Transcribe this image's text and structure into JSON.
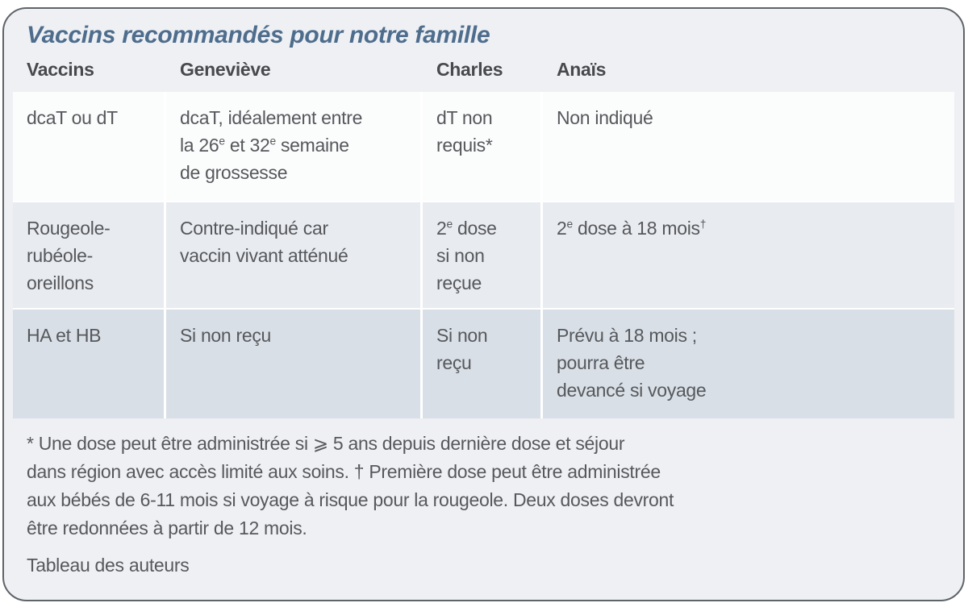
{
  "colors": {
    "card_bg": "#eef0f4",
    "card_border": "#5f6468",
    "row1_bg": "#fbfcfc",
    "row2_bg": "#e8ebef",
    "row3_bg": "#d8dfe6",
    "separator": "#ffffff",
    "title": "#4e6d8d",
    "header_text": "#47494c",
    "body_text": "#56585c"
  },
  "card": {
    "title": "Vaccins recommandés pour notre famille",
    "table": {
      "columns": [
        "Vaccins",
        "Geneviève",
        "Charles",
        "Anaïs"
      ],
      "rows": [
        {
          "cells": [
            [
              [
                "dcaT ou dT"
              ]
            ],
            [
              [
                "dcaT, idéalement entre"
              ],
              [
                "la 26",
                {
                  "sup": "e"
                },
                " et 32",
                {
                  "sup": "e"
                },
                " semaine"
              ],
              [
                "de grossesse"
              ]
            ],
            [
              [
                "dT non"
              ],
              [
                "requis*"
              ]
            ],
            [
              [
                "Non indiqué"
              ]
            ]
          ]
        },
        {
          "cells": [
            [
              [
                "Rougeole-"
              ],
              [
                "rubéole-"
              ],
              [
                "oreillons"
              ]
            ],
            [
              [
                "Contre-indiqué car"
              ],
              [
                "vaccin vivant atténué"
              ]
            ],
            [
              [
                "2",
                {
                  "sup": "e"
                },
                " dose"
              ],
              [
                "si non"
              ],
              [
                "reçue"
              ]
            ],
            [
              [
                "2",
                {
                  "sup": "e"
                },
                " dose à 18 mois",
                {
                  "sup": "†"
                }
              ]
            ]
          ]
        },
        {
          "cells": [
            [
              [
                "HA et HB"
              ]
            ],
            [
              [
                "Si non reçu"
              ]
            ],
            [
              [
                "Si non"
              ],
              [
                "reçu"
              ]
            ],
            [
              [
                "Prévu à 18 mois ;"
              ],
              [
                "pourra être"
              ],
              [
                "devancé si voyage"
              ]
            ]
          ]
        }
      ]
    },
    "footnote_lines": [
      "* Une dose peut être administrée si ⩾ 5 ans depuis dernière dose et séjour",
      "dans région avec accès limité aux soins. † Première dose peut être administrée",
      "aux bébés de 6-11 mois si voyage à risque pour la rougeole. Deux doses devront",
      "être redonnées à partir de 12 mois."
    ],
    "source": "Tableau des auteurs"
  },
  "chart_data": {
    "type": "table",
    "title": "Vaccins recommandés pour notre famille",
    "columns": [
      "Vaccins",
      "Geneviève",
      "Charles",
      "Anaïs"
    ],
    "rows": [
      [
        "dcaT ou dT",
        "dcaT, idéalement entre la 26e et 32e semaine de grossesse",
        "dT non requis*",
        "Non indiqué"
      ],
      [
        "Rougeole-rubéole-oreillons",
        "Contre-indiqué car vaccin vivant atténué",
        "2e dose si non reçue",
        "2e dose à 18 mois†"
      ],
      [
        "HA et HB",
        "Si non reçu",
        "Si non reçu",
        "Prévu à 18 mois ; pourra être devancé si voyage"
      ]
    ],
    "notes": "* Une dose peut être administrée si ⩾ 5 ans depuis dernière dose et séjour dans région avec accès limité aux soins. † Première dose peut être administrée aux bébés de 6-11 mois si voyage à risque pour la rougeole. Deux doses devront être redonnées à partir de 12 mois.",
    "source": "Tableau des auteurs"
  }
}
